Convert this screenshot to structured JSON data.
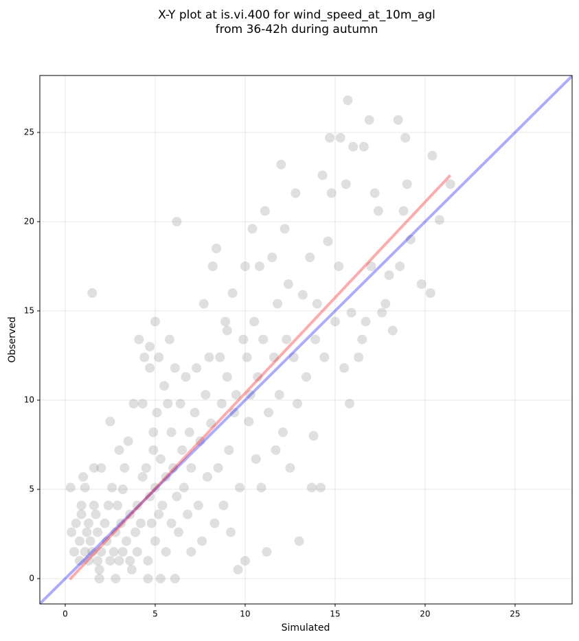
{
  "chart_data": {
    "type": "scatter",
    "title": "X-Y plot at is.vi.400 for wind_speed_at_10m_agl",
    "subtitle": "from 36-42h during autumn",
    "x_label": "Simulated",
    "y_label": "Observed",
    "xlim": [
      -1.41,
      28.17
    ],
    "ylim": [
      -1.42,
      28.19
    ],
    "xticks": [
      0,
      5,
      10,
      15,
      20,
      25
    ],
    "yticks": [
      0,
      5,
      10,
      15,
      20,
      25
    ],
    "grid": true,
    "series": [
      {
        "type": "scatter",
        "color": "#808080",
        "x": [
          0.3,
          0.35,
          0.5,
          0.6,
          0.8,
          0.8,
          0.9,
          0.9,
          1.0,
          1.1,
          1.1,
          1.2,
          1.3,
          1.3,
          1.4,
          1.5,
          1.5,
          1.6,
          1.6,
          1.7,
          1.8,
          1.8,
          1.9,
          1.9,
          2.0,
          2.0,
          2.2,
          2.3,
          2.4,
          2.5,
          2.5,
          2.6,
          2.7,
          2.8,
          2.8,
          2.9,
          3.0,
          3.0,
          3.1,
          3.2,
          3.2,
          3.3,
          3.4,
          3.5,
          3.6,
          3.6,
          3.7,
          3.8,
          3.9,
          4.0,
          4.0,
          4.1,
          4.2,
          4.3,
          4.3,
          4.4,
          4.5,
          4.6,
          4.6,
          4.7,
          4.7,
          4.7,
          4.8,
          4.9,
          4.9,
          5.0,
          5.0,
          5.0,
          5.1,
          5.2,
          5.2,
          5.3,
          5.3,
          5.4,
          5.5,
          5.6,
          5.6,
          5.7,
          5.8,
          5.9,
          5.9,
          6.0,
          6.1,
          6.1,
          6.2,
          6.2,
          6.3,
          6.4,
          6.5,
          6.6,
          6.7,
          6.8,
          6.9,
          7.0,
          7.0,
          7.2,
          7.3,
          7.4,
          7.5,
          7.6,
          7.7,
          7.8,
          7.9,
          8.0,
          8.1,
          8.2,
          8.3,
          8.4,
          8.5,
          8.6,
          8.7,
          8.8,
          8.9,
          9.0,
          9.0,
          9.1,
          9.2,
          9.3,
          9.4,
          9.5,
          9.6,
          9.7,
          9.9,
          10.0,
          10.0,
          10.1,
          10.2,
          10.3,
          10.4,
          10.5,
          10.6,
          10.7,
          10.8,
          10.9,
          11.0,
          11.1,
          11.2,
          11.3,
          11.5,
          11.6,
          11.7,
          11.8,
          11.9,
          12.0,
          12.1,
          12.2,
          12.3,
          12.4,
          12.5,
          12.7,
          12.8,
          12.9,
          13.0,
          13.2,
          13.4,
          13.6,
          13.7,
          13.8,
          13.9,
          14.0,
          14.2,
          14.3,
          14.4,
          14.6,
          14.7,
          14.8,
          15.0,
          15.2,
          15.3,
          15.5,
          15.6,
          15.7,
          15.8,
          15.9,
          16.0,
          16.3,
          16.5,
          16.6,
          16.7,
          16.9,
          17.0,
          17.2,
          17.4,
          17.6,
          17.8,
          18.0,
          18.2,
          18.5,
          18.6,
          18.8,
          18.9,
          19.0,
          19.2,
          19.8,
          20.3,
          20.4,
          20.8,
          21.4
        ],
        "values": [
          5.1,
          2.6,
          1.5,
          3.1,
          1.0,
          2.1,
          3.6,
          4.1,
          5.7,
          1.5,
          5.1,
          2.6,
          1.0,
          3.1,
          2.1,
          1.5,
          16.0,
          4.1,
          6.2,
          3.6,
          1.0,
          2.6,
          0.5,
          0.0,
          1.5,
          6.2,
          3.1,
          2.1,
          4.1,
          1.0,
          8.8,
          5.1,
          1.5,
          2.6,
          0.0,
          4.1,
          1.0,
          7.2,
          3.1,
          1.5,
          5.0,
          6.2,
          2.1,
          7.7,
          1.0,
          3.6,
          0.5,
          9.8,
          2.6,
          1.5,
          4.1,
          13.4,
          3.1,
          5.7,
          9.8,
          12.4,
          6.2,
          1.0,
          0.0,
          4.6,
          11.8,
          13.0,
          3.1,
          7.2,
          8.2,
          2.1,
          14.4,
          5.1,
          9.3,
          3.6,
          12.4,
          0.0,
          6.7,
          4.1,
          10.8,
          1.5,
          5.7,
          9.8,
          13.4,
          3.1,
          8.2,
          6.2,
          0.0,
          11.8,
          20.0,
          4.6,
          2.6,
          9.8,
          7.2,
          5.1,
          11.3,
          3.6,
          8.2,
          1.5,
          6.2,
          9.3,
          11.8,
          4.1,
          7.7,
          2.1,
          15.4,
          10.3,
          5.7,
          12.4,
          8.7,
          17.5,
          3.1,
          18.5,
          6.2,
          12.4,
          9.8,
          4.1,
          14.4,
          13.9,
          11.3,
          7.2,
          2.6,
          16.0,
          9.3,
          10.3,
          0.5,
          5.1,
          13.4,
          1.0,
          17.5,
          12.4,
          8.8,
          10.3,
          19.6,
          14.4,
          6.7,
          11.3,
          17.5,
          5.1,
          13.4,
          20.6,
          1.5,
          9.3,
          18.0,
          12.4,
          7.2,
          15.4,
          10.3,
          23.2,
          8.2,
          19.6,
          13.4,
          16.5,
          6.2,
          12.4,
          21.6,
          9.8,
          2.1,
          15.9,
          11.3,
          18.0,
          5.1,
          8.0,
          13.4,
          15.4,
          5.1,
          22.6,
          12.4,
          18.9,
          24.7,
          21.6,
          14.4,
          17.5,
          24.7,
          11.8,
          22.1,
          26.8,
          9.8,
          14.9,
          24.2,
          12.4,
          13.4,
          24.2,
          14.4,
          25.7,
          17.5,
          21.6,
          20.6,
          14.9,
          15.4,
          17.0,
          13.9,
          25.7,
          17.5,
          20.6,
          24.7,
          22.1,
          19.0,
          16.5,
          16.0,
          23.7,
          20.1,
          22.1
        ]
      },
      {
        "type": "line",
        "color": "#0000ff",
        "x": [
          -1.41,
          28.17
        ],
        "values": [
          -1.41,
          28.17
        ]
      },
      {
        "type": "line",
        "color": "#ff0000",
        "x": [
          0.25,
          21.4
        ],
        "values": [
          -0.05,
          22.6
        ]
      }
    ]
  }
}
